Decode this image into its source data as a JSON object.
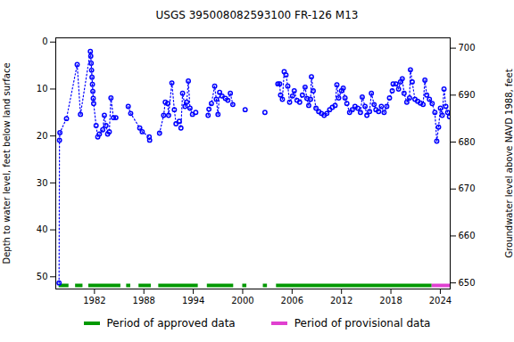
{
  "chart_data": {
    "type": "line",
    "title": "USGS 395008082593100 FR-126 M13",
    "ylabel": "Depth to water level, feet below land surface",
    "y2label": "Groundwater level above NAVD 1988, feet",
    "color": "#0000ff",
    "marker": "circle",
    "line_style": "dotted",
    "grid": false,
    "legend": "bottom",
    "xlim": [
      1977.3,
      2025.2
    ],
    "xticks": [
      1982,
      1988,
      1994,
      2000,
      2006,
      2012,
      2018,
      2024
    ],
    "ylim": [
      52.6,
      -0.9
    ],
    "yticks": [
      0,
      10,
      20,
      30,
      40,
      50
    ],
    "y2lim": [
      648.7,
      702.2
    ],
    "y2ticks": [
      650,
      660,
      670,
      680,
      690,
      700
    ],
    "x": [
      1977.7,
      1977.75,
      1977.8,
      1978.6,
      1979.9,
      1980.3,
      1981.5,
      1981.55,
      1981.6,
      1981.65,
      1981.7,
      1981.75,
      1981.8,
      1981.85,
      1981.9,
      1982.2,
      1982.4,
      1982.6,
      1983.0,
      1983.2,
      1983.4,
      1983.6,
      1983.8,
      1984.0,
      1984.3,
      1984.6,
      1985.3,
      1986.1,
      1986.4,
      1987.5,
      1987.8,
      1988.65,
      1988.7,
      1989.3,
      1989.9,
      1990.4,
      1990.6,
      1990.9,
      1991.0,
      1991.4,
      1991.7,
      1991.9,
      1992.3,
      1992.5,
      1992.7,
      1993.0,
      1993.2,
      1993.4,
      1993.6,
      1993.9,
      1994.3,
      1995.0,
      1995.8,
      1995.9,
      1996.2,
      1996.6,
      1996.8,
      1997.0,
      1997.2,
      1997.5,
      1997.9,
      1998.2,
      1998.5,
      1998.8,
      1999.5,
      2000.3,
      2001.5,
      2002.7,
      2003.5,
      2004.27,
      2004.49,
      2004.6,
      2004.82,
      2005.04,
      2005.26,
      2005.48,
      2005.7,
      2006.04,
      2006.26,
      2006.59,
      2006.92,
      2007.25,
      2007.58,
      2007.8,
      2008.02,
      2008.24,
      2008.35,
      2008.57,
      2008.9,
      2009.23,
      2009.56,
      2009.89,
      2010.22,
      2010.56,
      2010.89,
      2011.22,
      2011.44,
      2011.66,
      2011.99,
      2012.21,
      2012.43,
      2012.65,
      2012.98,
      2013.31,
      2013.64,
      2013.97,
      2014.3,
      2014.52,
      2014.86,
      2015.08,
      2015.41,
      2015.63,
      2015.96,
      2016.18,
      2016.51,
      2016.84,
      2017.17,
      2017.5,
      2017.83,
      2018.16,
      2018.27,
      2018.6,
      2018.93,
      2019.16,
      2019.38,
      2019.6,
      2019.93,
      2020.26,
      2020.37,
      2020.59,
      2020.92,
      2021.25,
      2021.58,
      2021.91,
      2022.13,
      2022.35,
      2022.68,
      2023.01,
      2023.34,
      2023.57,
      2023.79,
      2024.01,
      2024.23,
      2024.45,
      2024.67,
      2024.89,
      2025.11
    ],
    "values": [
      51.3,
      20.9,
      19.3,
      16.3,
      4.8,
      15.4,
      2.0,
      3.0,
      4.5,
      6.0,
      7.5,
      9.0,
      10.5,
      12.0,
      13.1,
      17.8,
      20.2,
      19.6,
      18.7,
      15.6,
      17.8,
      19.6,
      19.1,
      11.9,
      16.1,
      16.1,
      null,
      13.7,
      15.2,
      18.3,
      19.1,
      20.2,
      20.9,
      null,
      19.4,
      15.6,
      12.8,
      13.1,
      15.6,
      8.7,
      14.4,
      17.4,
      16.9,
      18.3,
      10.9,
      13.7,
      12.8,
      8.3,
      14.1,
      15.4,
      15.0,
      null,
      15.6,
      14.3,
      13.1,
      9.4,
      12.2,
      15.4,
      10.7,
      11.5,
      12.0,
      12.4,
      10.9,
      13.3,
      null,
      14.4,
      null,
      15.0,
      null,
      8.9,
      8.9,
      11.3,
      12.2,
      6.3,
      7.0,
      9.4,
      12.8,
      11.5,
      10.4,
      12.4,
      12.8,
      11.3,
      9.6,
      12.0,
      13.5,
      12.2,
      7.4,
      10.4,
      14.1,
      14.8,
      15.2,
      15.6,
      15.2,
      14.4,
      13.9,
      13.5,
      9.1,
      11.9,
      10.4,
      9.8,
      11.9,
      13.1,
      15.0,
      14.4,
      13.7,
      14.1,
      15.0,
      11.7,
      13.7,
      15.6,
      14.8,
      10.9,
      13.3,
      14.4,
      14.8,
      13.7,
      15.0,
      13.7,
      11.9,
      10.4,
      8.9,
      8.9,
      10.0,
      8.5,
      7.8,
      10.9,
      12.8,
      11.9,
      5.9,
      8.5,
      12.2,
      12.6,
      13.0,
      13.3,
      8.1,
      11.3,
      12.2,
      13.1,
      15.0,
      21.1,
      18.1,
      14.1,
      15.6,
      10.0,
      13.7,
      15.0,
      15.9
    ],
    "periods": [
      {
        "name": "Period of approved data",
        "color": "#009900",
        "ranges": [
          [
            1977.7,
            1978.9
          ],
          [
            1979.7,
            1980.6
          ],
          [
            1981.3,
            1985.2
          ],
          [
            1985.9,
            1986.4
          ],
          [
            1987.4,
            1988.9
          ],
          [
            1989.8,
            1994.6
          ],
          [
            1995.7,
            1998.9
          ],
          [
            2000.0,
            2000.5
          ],
          [
            2002.5,
            2003.0
          ],
          [
            2004.1,
            2023.0
          ]
        ]
      },
      {
        "name": "Period of provisional data",
        "color": "#e040d0",
        "ranges": [
          [
            2023.0,
            2025.2
          ]
        ]
      }
    ]
  }
}
